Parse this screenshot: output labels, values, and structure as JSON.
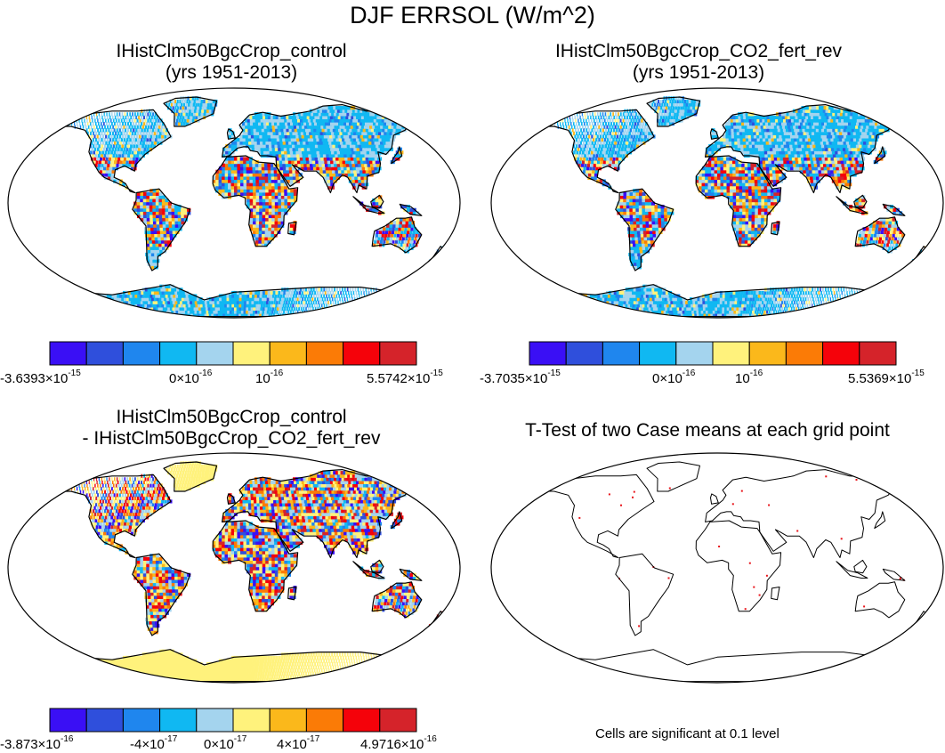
{
  "figure": {
    "title": "DJF ERRSOL (W/m^2)"
  },
  "panels": [
    {
      "id": "control",
      "title_line1": "IHistClm50BgcCrop_control",
      "title_line2": "(yrs 1951-2013)",
      "colorbar": {
        "colors": [
          "#3a0ff5",
          "#2f4fdc",
          "#1f86ee",
          "#10b8f2",
          "#a4d4ee",
          "#fff27c",
          "#fbb81b",
          "#fb7b06",
          "#f5020a",
          "#d5232a"
        ],
        "labels": [
          {
            "mant": "-3.6393×10",
            "exp": "-15"
          },
          {
            "mant": "0×10",
            "exp": "-16"
          },
          {
            "mant": "10",
            "exp": "-16"
          },
          {
            "mant": "5.5742×10",
            "exp": "-15"
          }
        ]
      }
    },
    {
      "id": "co2_fert_rev",
      "title_line1": "IHistClm50BgcCrop_CO2_fert_rev",
      "title_line2": "(yrs 1951-2013)",
      "colorbar": {
        "colors": [
          "#3a0ff5",
          "#2f4fdc",
          "#1f86ee",
          "#10b8f2",
          "#a4d4ee",
          "#fff27c",
          "#fbb81b",
          "#fb7b06",
          "#f5020a",
          "#d5232a"
        ],
        "labels": [
          {
            "mant": "-3.7035×10",
            "exp": "-15"
          },
          {
            "mant": "0×10",
            "exp": "-16"
          },
          {
            "mant": "10",
            "exp": "-16"
          },
          {
            "mant": "5.5369×10",
            "exp": "-15"
          }
        ]
      }
    },
    {
      "id": "difference",
      "title_line1": "IHistClm50BgcCrop_control",
      "title_line2": "- IHistClm50BgcCrop_CO2_fert_rev",
      "colorbar": {
        "colors": [
          "#3a0ff5",
          "#2f4fdc",
          "#1f86ee",
          "#10b8f2",
          "#a4d4ee",
          "#fff27c",
          "#fbb81b",
          "#fb7b06",
          "#f5020a",
          "#d5232a"
        ],
        "labels": [
          {
            "mant": "-3.873×10",
            "exp": "-16"
          },
          {
            "mant": "-4×10",
            "exp": "-17"
          },
          {
            "mant": "0×10",
            "exp": "-17"
          },
          {
            "mant": "4×10",
            "exp": "-17"
          },
          {
            "mant": "4.9716×10",
            "exp": "-16"
          }
        ]
      }
    },
    {
      "id": "ttest",
      "title_line1": "T-Test of two Case means at each grid point",
      "note": "Cells are significant at 0.1 level",
      "marker_color": "#e8141a"
    }
  ]
}
